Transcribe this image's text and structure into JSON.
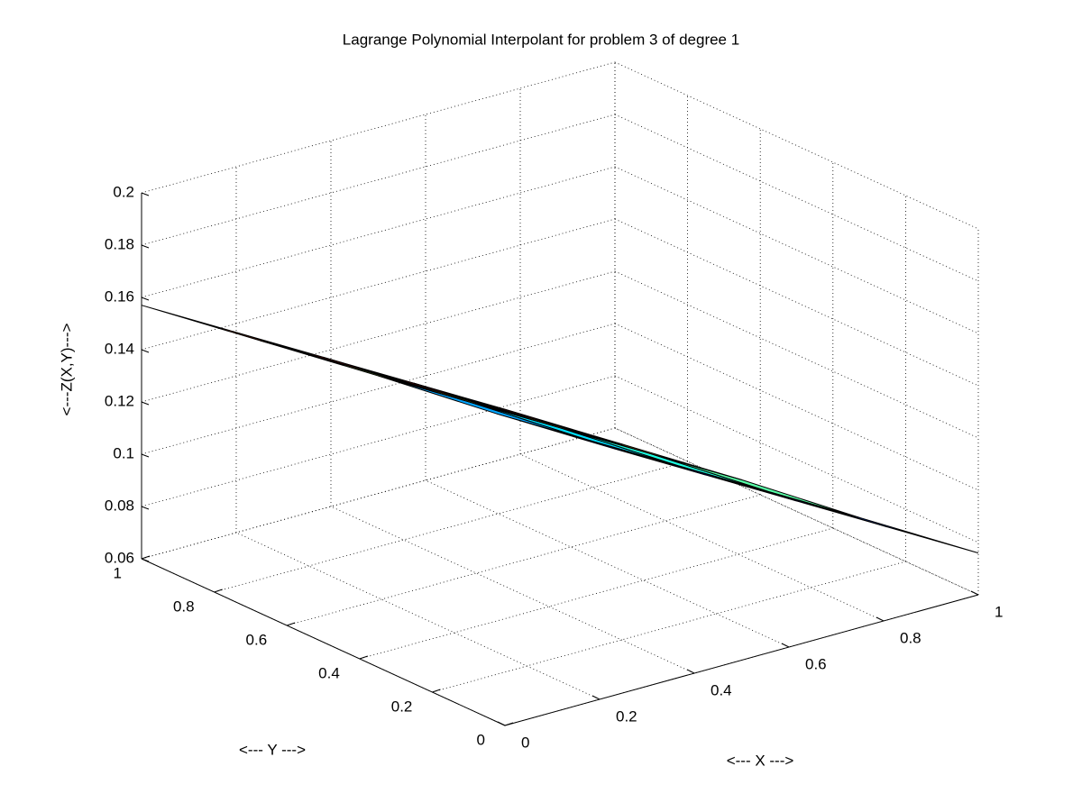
{
  "chart_data": {
    "type": "surface",
    "title": "Lagrange Polynomial Interpolant for problem 3 of degree 1",
    "xlabel": "<--- X --->",
    "ylabel": "<--- Y --->",
    "zlabel": "<---Z(X,Y)--->",
    "x": [
      0,
      0.25,
      0.5,
      0.75,
      1
    ],
    "y": [
      0,
      0.25,
      0.5,
      0.75,
      1
    ],
    "z": [
      [
        0.181,
        0.155,
        0.129,
        0.102,
        0.076
      ],
      [
        0.175,
        0.149,
        0.123,
        0.096,
        0.07
      ],
      [
        0.169,
        0.143,
        0.117,
        0.09,
        0.064
      ],
      [
        0.163,
        0.137,
        0.111,
        0.084,
        0.058
      ],
      [
        0.157,
        0.131,
        0.105,
        0.078,
        0.052
      ]
    ],
    "colormap": [
      "#00008f",
      "#0000ff",
      "#00ffff",
      "#ffff00",
      "#ff0000",
      "#800000"
    ],
    "edge_color": "#000000",
    "xlim": [
      0,
      1
    ],
    "ylim": [
      0,
      1
    ],
    "zlim": [
      0.06,
      0.2
    ],
    "xticks": [
      0,
      0.2,
      0.4,
      0.6,
      0.8,
      1
    ],
    "yticks": [
      0,
      0.2,
      0.4,
      0.6,
      0.8,
      1
    ],
    "zticks": [
      0.06,
      0.08,
      0.1,
      0.12,
      0.14,
      0.16,
      0.18,
      0.2
    ],
    "grid": true
  }
}
